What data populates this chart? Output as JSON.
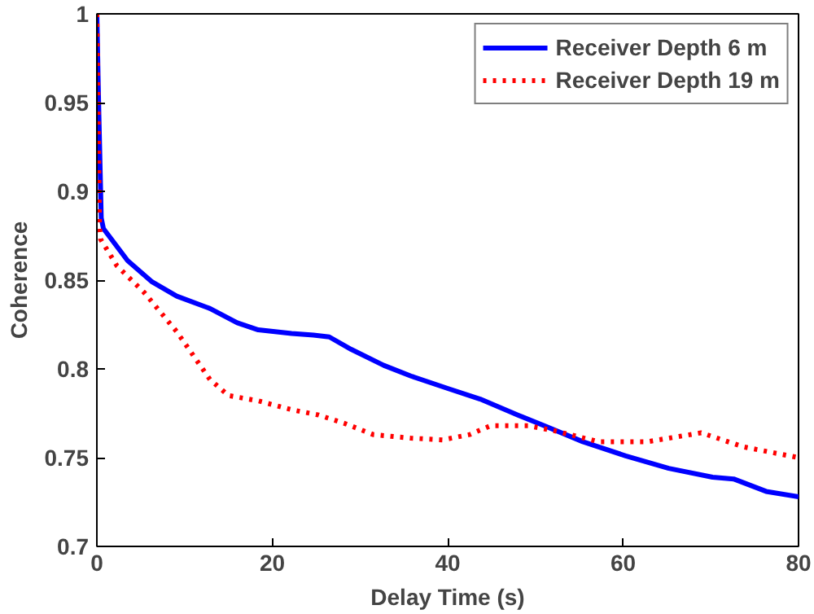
{
  "chart_data": {
    "type": "line",
    "xlabel": "Delay Time (s)",
    "ylabel": "Coherence",
    "xlim": [
      0,
      80
    ],
    "ylim": [
      0.7,
      1
    ],
    "xticks": [
      0,
      20,
      40,
      60,
      80
    ],
    "yticks": [
      {
        "value": 0.7,
        "label": "0.7"
      },
      0.75,
      {
        "value": 0.8,
        "label": "0.8"
      },
      0.85,
      {
        "value": 0.9,
        "label": "0.9"
      },
      0.95,
      {
        "value": 1,
        "label": "1"
      }
    ],
    "grid": false,
    "legend": "top right",
    "marker": "none",
    "series": [
      {
        "name": "Receiver Depth 6 m",
        "color": "#0000ff",
        "line_style": "solid",
        "x": [
          0,
          0.2,
          0.5,
          0.75,
          3.5,
          6.3,
          9.1,
          12.9,
          16,
          18.4,
          22.2,
          24.7,
          26.5,
          29,
          32.7,
          35.8,
          40,
          43.7,
          48,
          51,
          55.4,
          60.3,
          65.2,
          70.2,
          72.6,
          76.3,
          80
        ],
        "values": [
          1,
          0.95,
          0.885,
          0.879,
          0.861,
          0.849,
          0.841,
          0.834,
          0.826,
          0.822,
          0.82,
          0.819,
          0.818,
          0.811,
          0.802,
          0.796,
          0.789,
          0.783,
          0.774,
          0.768,
          0.759,
          0.751,
          0.744,
          0.739,
          0.738,
          0.731,
          0.728
        ]
      },
      {
        "name": "Receiver Depth 19 m",
        "color": "#ff0000",
        "line_style": "dotted",
        "x": [
          0,
          0.3,
          0.43,
          2.3,
          5.4,
          9.1,
          12.9,
          15,
          18.4,
          22.2,
          25.3,
          28.4,
          31.5,
          35.8,
          39.4,
          42.5,
          44.9,
          49.2,
          52.3,
          57.2,
          62.8,
          68.9,
          73.8,
          80
        ],
        "values": [
          1,
          0.88,
          0.873,
          0.858,
          0.843,
          0.821,
          0.794,
          0.785,
          0.782,
          0.777,
          0.774,
          0.769,
          0.763,
          0.761,
          0.76,
          0.763,
          0.768,
          0.768,
          0.765,
          0.759,
          0.759,
          0.764,
          0.756,
          0.75
        ]
      }
    ]
  }
}
